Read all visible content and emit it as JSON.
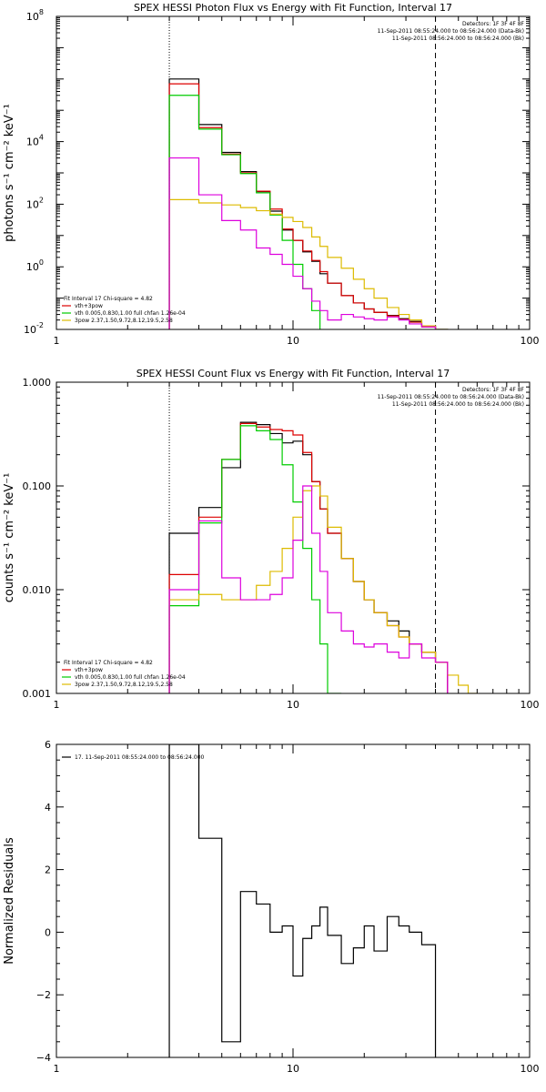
{
  "chart_data": [
    {
      "type": "line",
      "title": "SPEX HESSI Photon Flux vs Energy with Fit Function, Interval 17",
      "ylabel": "photons s⁻¹ cm⁻² keV⁻¹",
      "xlabel": "",
      "x_scale": "log",
      "y_scale": "log",
      "xlim": [
        1,
        100
      ],
      "ylim": [
        0.01,
        100000000
      ],
      "x_ticks": [
        {
          "value": 1,
          "label": "1"
        },
        {
          "value": 10,
          "label": "10"
        },
        {
          "value": 100,
          "label": "100"
        }
      ],
      "y_ticks": [
        {
          "value": 0.01,
          "label": "10",
          "sup": "-2"
        },
        {
          "value": 1,
          "label": "10",
          "sup": "0"
        },
        {
          "value": 100,
          "label": "10",
          "sup": "2"
        },
        {
          "value": 10000,
          "label": "10",
          "sup": "4"
        },
        {
          "value": 100000000,
          "label": "10",
          "sup": "8"
        }
      ],
      "vlines": [
        {
          "x": 3,
          "style": "dotted"
        },
        {
          "x": 40,
          "style": "dashed"
        }
      ],
      "header": [
        "Detectors: 1F 3F 4F 8F",
        "11-Sep-2011 08:55:24.000 to 08:56:24.000 (Data-Bk)",
        "11-Sep-2011 08:56:24.000 to 08:56:24.000 (Bk)"
      ],
      "legend": [
        "Fit Interval 17    Chi-square = 4.82",
        "vth+3pow",
        "vth 0.005,0.830,1.00  full chfan 1.26e-04",
        "3pow 2.37,1.50,9.72,8.12,19.5,2.58"
      ],
      "legend_colors": [
        "#000000",
        "#dd0000",
        "#00cc00",
        "#ddbb00"
      ],
      "edges": [
        3,
        4,
        5,
        6,
        7,
        8,
        9,
        10,
        11,
        12,
        13,
        14,
        16,
        18,
        20,
        22,
        25,
        28,
        31,
        35,
        40,
        45,
        50
      ],
      "series": [
        {
          "name": "",
          "color": "#000000",
          "values": [
            1000000,
            35000,
            4500,
            1100,
            250,
            60,
            15,
            7,
            3,
            1.5,
            0.6,
            0.3,
            0.12,
            0.07,
            0.045,
            0.035,
            0.028,
            0.022,
            0.018,
            0.013,
            0.01,
            0.006
          ]
        },
        {
          "name": "vth+3pow",
          "color": "#dd0000",
          "values": [
            700000,
            28000,
            4000,
            1000,
            260,
            70,
            16,
            7,
            3.2,
            1.6,
            0.7,
            0.3,
            0.12,
            0.07,
            0.045,
            0.035,
            0.027,
            0.021,
            0.017,
            0.012,
            0.009,
            0.006
          ]
        },
        {
          "name": "vth",
          "color": "#00cc00",
          "values": [
            300000,
            25000,
            3800,
            950,
            230,
            45,
            7,
            1.2,
            0.2,
            0.04,
            0.008
          ]
        },
        {
          "name": "3pow",
          "color": "#ddbb00",
          "values": [
            140,
            110,
            95,
            78,
            62,
            48,
            38,
            28,
            18,
            9,
            4.5,
            2,
            0.9,
            0.4,
            0.2,
            0.1,
            0.05,
            0.03,
            0.02,
            0.013,
            0.01,
            0.006
          ]
        },
        {
          "name": "",
          "color": "#dd00dd",
          "values": [
            3000,
            200,
            30,
            15,
            4,
            2.5,
            1.2,
            0.5,
            0.2,
            0.08,
            0.04,
            0.02,
            0.03,
            0.025,
            0.022,
            0.02,
            0.025,
            0.02,
            0.015,
            0.012
          ]
        }
      ]
    },
    {
      "type": "line",
      "title": "SPEX HESSI Count Flux vs Energy with Fit Function, Interval 17",
      "ylabel": "counts s⁻¹ cm⁻² keV⁻¹",
      "xlabel": "",
      "x_scale": "log",
      "y_scale": "log",
      "xlim": [
        1,
        100
      ],
      "ylim": [
        0.001,
        1
      ],
      "x_ticks": [
        {
          "value": 1,
          "label": "1"
        },
        {
          "value": 10,
          "label": "10"
        },
        {
          "value": 100,
          "label": "100"
        }
      ],
      "y_ticks": [
        {
          "value": 0.001,
          "label": "0.001"
        },
        {
          "value": 0.01,
          "label": "0.010"
        },
        {
          "value": 0.1,
          "label": "0.100"
        },
        {
          "value": 1,
          "label": "1.000"
        }
      ],
      "vlines": [
        {
          "x": 3,
          "style": "dotted"
        },
        {
          "x": 40,
          "style": "dashed"
        }
      ],
      "header": [
        "Detectors: 1F 3F 4F 8F",
        "11-Sep-2011 08:55:24.000 to 08:56:24.000 (Data-Bk)",
        "11-Sep-2011 08:56:24.000 to 08:56:24.000 (Bk)"
      ],
      "legend": [
        "Fit Interval 17    Chi-square = 4.82",
        "vth+3pow",
        "vth 0.005,0.830,1.00  full chfan 1.26e-04",
        "3pow 2.37,1.50,9.72,8.12,19.5,2.58"
      ],
      "legend_colors": [
        "#000000",
        "#dd0000",
        "#00cc00",
        "#ddbb00"
      ],
      "edges": [
        3,
        4,
        5,
        6,
        7,
        8,
        9,
        10,
        11,
        12,
        13,
        14,
        16,
        18,
        20,
        22,
        25,
        28,
        31,
        35,
        40,
        45,
        50,
        55,
        60
      ],
      "series": [
        {
          "name": "",
          "color": "#000000",
          "values": [
            0.035,
            0.062,
            0.15,
            0.41,
            0.39,
            0.32,
            0.26,
            0.27,
            0.2,
            0.11,
            0.06,
            0.035,
            0.02,
            0.012,
            0.008,
            0.006,
            0.005,
            0.004,
            0.003,
            0.0025,
            0.002
          ]
        },
        {
          "name": "vth+3pow",
          "color": "#dd0000",
          "values": [
            0.014,
            0.05,
            0.18,
            0.4,
            0.37,
            0.35,
            0.34,
            0.31,
            0.21,
            0.11,
            0.06,
            0.035,
            0.02,
            0.012,
            0.008,
            0.006,
            0.0045,
            0.0035,
            0.003,
            0.0025,
            0.002
          ]
        },
        {
          "name": "vth",
          "color": "#00cc00",
          "values": [
            0.007,
            0.044,
            0.18,
            0.38,
            0.34,
            0.28,
            0.16,
            0.07,
            0.025,
            0.008,
            0.003,
            0.001
          ]
        },
        {
          "name": "3pow",
          "color": "#ddbb00",
          "values": [
            0.008,
            0.009,
            0.008,
            0.008,
            0.011,
            0.015,
            0.025,
            0.05,
            0.09,
            0.1,
            0.08,
            0.04,
            0.02,
            0.012,
            0.008,
            0.006,
            0.0045,
            0.0035,
            0.003,
            0.0025,
            0.002,
            0.0015,
            0.0012,
            0.001
          ]
        },
        {
          "name": "",
          "color": "#dd00dd",
          "values": [
            0.01,
            0.046,
            0.013,
            0.008,
            0.008,
            0.009,
            0.013,
            0.03,
            0.1,
            0.035,
            0.015,
            0.006,
            0.004,
            0.003,
            0.0028,
            0.003,
            0.0025,
            0.0022,
            0.003,
            0.0022,
            0.002
          ]
        }
      ]
    },
    {
      "type": "line",
      "title": "",
      "ylabel": "Normalized Residuals",
      "xlabel": "",
      "x_scale": "log",
      "y_scale": "linear",
      "xlim": [
        1,
        100
      ],
      "ylim": [
        -4,
        6
      ],
      "x_ticks": [
        {
          "value": 1,
          "label": "1"
        },
        {
          "value": 10,
          "label": "10"
        },
        {
          "value": 100,
          "label": "100"
        }
      ],
      "y_ticks": [
        {
          "value": -4,
          "label": "−4"
        },
        {
          "value": -2,
          "label": "−2"
        },
        {
          "value": 0,
          "label": "0"
        },
        {
          "value": 2,
          "label": "2"
        },
        {
          "value": 4,
          "label": "4"
        },
        {
          "value": 6,
          "label": "6"
        }
      ],
      "vlines": [],
      "header": [],
      "legend": [
        "17. 11-Sep-2011 08:55:24.000 to 08:56:24.000"
      ],
      "legend_colors": [
        "#000000"
      ],
      "edges": [
        3,
        4,
        5,
        6,
        7,
        8,
        9,
        10,
        11,
        12,
        13,
        14,
        16,
        18,
        20,
        22,
        25,
        28,
        31,
        35,
        40
      ],
      "series": [
        {
          "name": "",
          "color": "#000000",
          "values": [
            6,
            3,
            -3.5,
            1.3,
            0.9,
            0,
            0.2,
            -1.4,
            -0.2,
            0.2,
            0.8,
            -0.1,
            -1.0,
            -0.5,
            0.2,
            -0.6,
            0.5,
            0.2,
            0,
            -0.4
          ]
        }
      ]
    }
  ]
}
